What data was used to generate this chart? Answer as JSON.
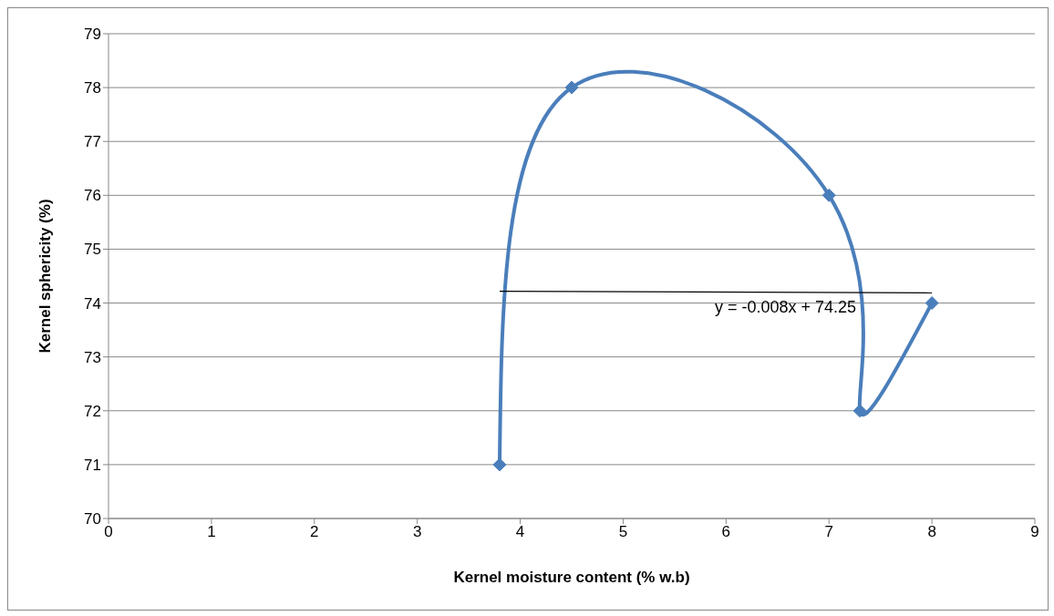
{
  "chart_data": {
    "type": "line",
    "xlabel": "Kernel moisture content (% w.b)",
    "ylabel": "Kernel sphericity (%)",
    "series": [
      {
        "color": "#4a7ebb",
        "x": [
          3.8,
          4.5,
          7,
          7.3,
          8
        ],
        "values": [
          71,
          78,
          76,
          72,
          74
        ],
        "marker": "diamond"
      },
      {
        "color": "#000000",
        "x": [
          3.8,
          8
        ],
        "values": [
          74.22,
          74.19
        ],
        "marker": "none"
      }
    ],
    "annotations": [
      "y = -0.008x + 74.25"
    ],
    "xlim": [
      0,
      9
    ],
    "xticks": [
      0,
      1,
      2,
      3,
      4,
      5,
      6,
      7,
      8,
      9
    ],
    "ylim": [
      70,
      79
    ],
    "yticks": [
      70,
      71,
      72,
      73,
      74,
      75,
      76,
      77,
      78,
      79
    ],
    "grid": "y"
  }
}
